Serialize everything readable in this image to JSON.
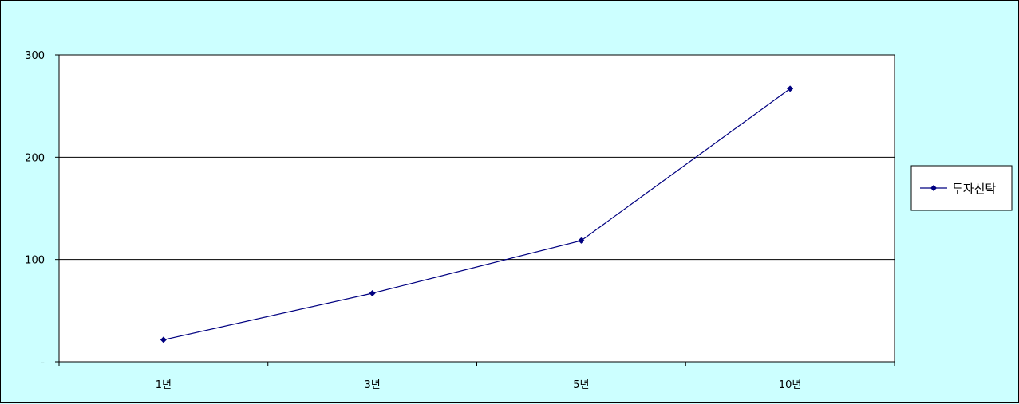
{
  "colors": {
    "background": "#ccffff",
    "plot_area": "#ffffff",
    "series_line": "#000080",
    "gridline": "#000000"
  },
  "chart_data": {
    "type": "line",
    "categories": [
      "1년",
      "3년",
      "5년",
      "10년"
    ],
    "series": [
      {
        "name": "투자신탁",
        "values": [
          21.5,
          67,
          118.5,
          267
        ]
      }
    ],
    "ylim": [
      0,
      300
    ],
    "y_ticks": [
      0,
      100,
      200,
      300
    ],
    "y_tick_labels": [
      "-",
      "100",
      "200",
      "300"
    ],
    "grid": true,
    "legend_position": "right",
    "marker": "diamond"
  }
}
